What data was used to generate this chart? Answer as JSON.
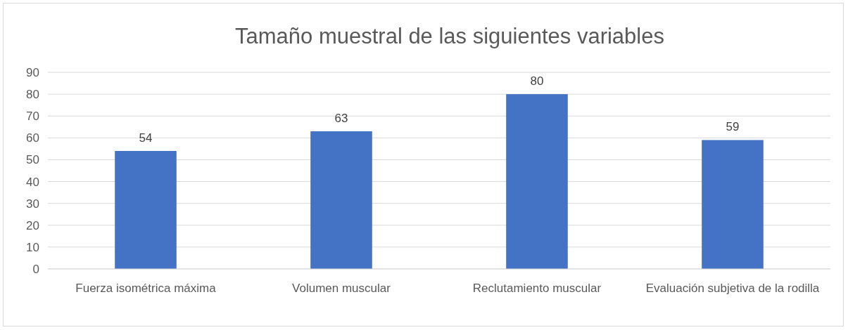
{
  "chart_data": {
    "type": "bar",
    "title": "Tamaño muestral de las siguientes variables",
    "categories": [
      "Fuerza isométrica máxima",
      "Volumen muscular",
      "Reclutamiento muscular",
      "Evaluación subjetiva de la rodilla"
    ],
    "values": [
      54,
      63,
      80,
      59
    ],
    "color": "#4472c4",
    "ylim": [
      0,
      90
    ],
    "yticks": [
      0,
      10,
      20,
      30,
      40,
      50,
      60,
      70,
      80,
      90
    ],
    "grid": "y",
    "data_labels": true
  }
}
